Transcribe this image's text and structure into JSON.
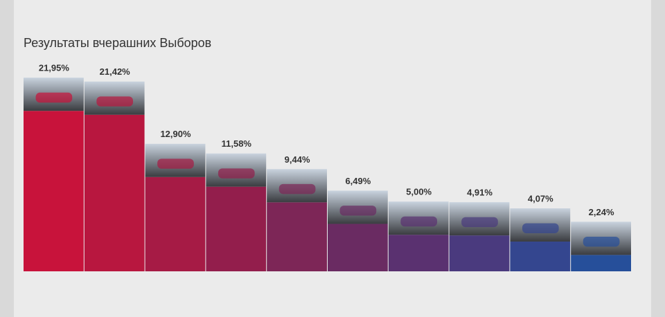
{
  "chart_data": {
    "type": "bar",
    "title": "Результаты вчерашних Выборов",
    "values": [
      21.95,
      21.42,
      12.9,
      11.58,
      9.44,
      6.49,
      5.0,
      4.91,
      4.07,
      2.24
    ],
    "value_labels": [
      "21,95%",
      "21,42%",
      "12,90%",
      "11,58%",
      "9,44%",
      "6,49%",
      "5,00%",
      "4,91%",
      "4,07%",
      "2,24%"
    ],
    "colors": [
      "#c8133b",
      "#b8173f",
      "#a61b45",
      "#931e4c",
      "#7d2657",
      "#6a2b62",
      "#5a3170",
      "#4a3a7e",
      "#34468f",
      "#264f9a"
    ],
    "ylim": [
      0,
      25
    ]
  }
}
